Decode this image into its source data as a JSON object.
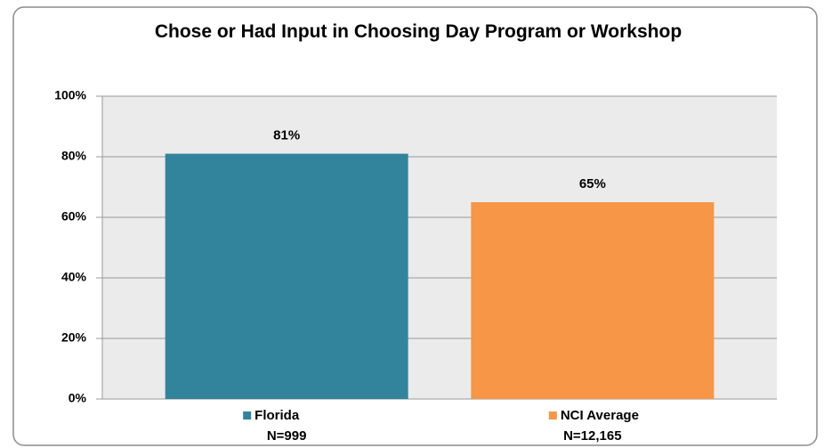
{
  "chart_data": {
    "type": "bar",
    "title": "Chose or Had Input in Choosing Day Program or Workshop",
    "categories": [
      "Florida",
      "NCI Average"
    ],
    "category_notes": [
      "N=999",
      "N=12,165"
    ],
    "values": [
      81,
      65
    ],
    "value_labels": [
      "81%",
      "65%"
    ],
    "colors": [
      "#31849b",
      "#f79646"
    ],
    "ylim": [
      0,
      100
    ],
    "yticks": [
      {
        "value": 0,
        "label": "0%"
      },
      {
        "value": 20,
        "label": "20%"
      },
      {
        "value": 40,
        "label": "40%"
      },
      {
        "value": 60,
        "label": "60%"
      },
      {
        "value": 80,
        "label": "80%"
      },
      {
        "value": 100,
        "label": "100%"
      }
    ],
    "grid": true
  }
}
